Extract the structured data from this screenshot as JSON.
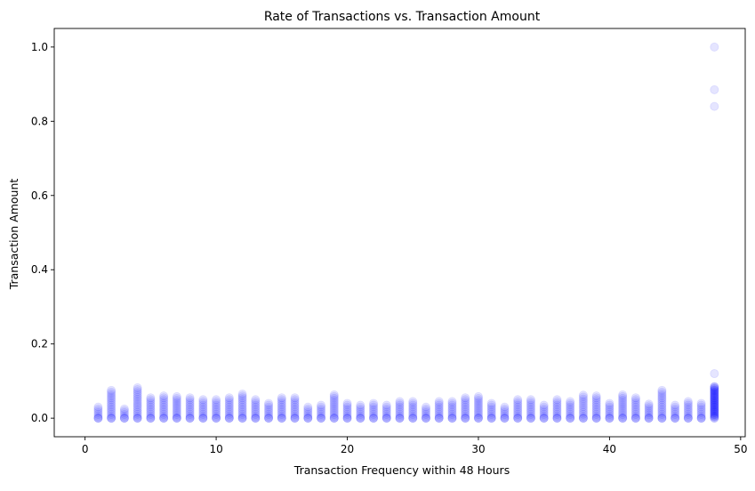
{
  "chart_data": {
    "type": "scatter",
    "title": "Rate of Transactions vs. Transaction Amount",
    "xlabel": "Transaction Frequency within 48 Hours",
    "ylabel": "Transaction Amount",
    "xlim": [
      -2.35,
      50.35
    ],
    "ylim": [
      -0.05,
      1.05
    ],
    "xticks": [
      0,
      10,
      20,
      30,
      40,
      50
    ],
    "xtick_labels": [
      "0",
      "10",
      "20",
      "30",
      "40",
      "50"
    ],
    "yticks": [
      0.0,
      0.2,
      0.4,
      0.6,
      0.8,
      1.0
    ],
    "ytick_labels": [
      "0.0",
      "0.2",
      "0.4",
      "0.6",
      "0.8",
      "1.0"
    ],
    "grid": false,
    "marker_color": "#0000ff",
    "marker_alpha": 0.1,
    "series": [
      {
        "x_range": [
          1,
          47
        ],
        "x_step": 1,
        "y_max_by_x": [
          0.03,
          0.075,
          0.025,
          0.082,
          0.055,
          0.06,
          0.058,
          0.055,
          0.05,
          0.05,
          0.055,
          0.065,
          0.05,
          0.04,
          0.055,
          0.055,
          0.03,
          0.035,
          0.063,
          0.04,
          0.035,
          0.04,
          0.035,
          0.045,
          0.045,
          0.03,
          0.045,
          0.045,
          0.055,
          0.058,
          0.04,
          0.03,
          0.05,
          0.05,
          0.035,
          0.05,
          0.045,
          0.062,
          0.06,
          0.04,
          0.063,
          0.055,
          0.038,
          0.075,
          0.035,
          0.045,
          0.04
        ]
      },
      {
        "x": 48,
        "y": [
          0.0,
          0.005,
          0.01,
          0.015,
          0.02,
          0.025,
          0.03,
          0.035,
          0.04,
          0.045,
          0.05,
          0.055,
          0.06,
          0.065,
          0.07,
          0.075,
          0.08,
          0.085,
          0.12,
          0.84,
          0.885,
          1.0
        ]
      }
    ]
  }
}
